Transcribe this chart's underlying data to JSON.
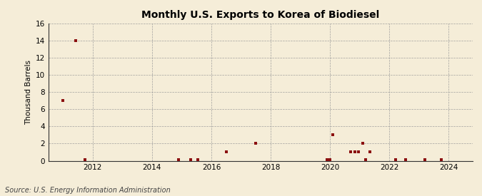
{
  "title": "Monthly U.S. Exports to Korea of Biodiesel",
  "ylabel": "Thousand Barrels",
  "source": "Source: U.S. Energy Information Administration",
  "background_color": "#f5edd8",
  "marker_color": "#8b1010",
  "marker_size": 6,
  "xlim": [
    2010.5,
    2024.8
  ],
  "ylim": [
    0,
    16
  ],
  "yticks": [
    0,
    2,
    4,
    6,
    8,
    10,
    12,
    14,
    16
  ],
  "xticks": [
    2012,
    2014,
    2016,
    2018,
    2020,
    2022,
    2024
  ],
  "data_points": [
    [
      2011.0,
      7.0
    ],
    [
      2011.42,
      14.0
    ],
    [
      2011.75,
      0.15
    ],
    [
      2014.9,
      0.15
    ],
    [
      2015.3,
      0.15
    ],
    [
      2015.55,
      0.15
    ],
    [
      2016.5,
      1.0
    ],
    [
      2017.5,
      2.0
    ],
    [
      2019.9,
      0.15
    ],
    [
      2020.0,
      0.15
    ],
    [
      2020.1,
      3.0
    ],
    [
      2020.7,
      1.0
    ],
    [
      2020.85,
      1.0
    ],
    [
      2020.95,
      1.0
    ],
    [
      2021.1,
      2.0
    ],
    [
      2021.2,
      0.15
    ],
    [
      2021.35,
      1.0
    ],
    [
      2022.2,
      0.15
    ],
    [
      2022.55,
      0.15
    ],
    [
      2023.2,
      0.15
    ],
    [
      2023.75,
      0.15
    ]
  ]
}
